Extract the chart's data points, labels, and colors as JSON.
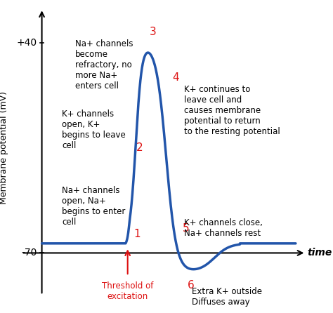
{
  "ylabel": "Membrane potential (mV)",
  "xlabel": "time",
  "background_color": "#ffffff",
  "curve_color": "#2255aa",
  "curve_linewidth": 2.5,
  "red_color": "#dd1111",
  "black_color": "#000000",
  "annotations": {
    "stage3_text": "Na+ channels\nbecome\nrefractory, no\nmore Na+\nenters cell",
    "stage2_text": "K+ channels\nopen, K+\nbegins to leave\ncell",
    "stage1_text": "Na+ channels\nopen, Na+\nbegins to enter\ncell",
    "stage4_text": "K+ continues to\nleave cell and\ncauses membrane\npotential to return\nto the resting potential",
    "stage5_text": "K+ channels close,\nNa+ channels rest",
    "stage6_text": "Extra K+ outside\nDiffuses away",
    "threshold_text": "Threshold of\nexcitation"
  }
}
